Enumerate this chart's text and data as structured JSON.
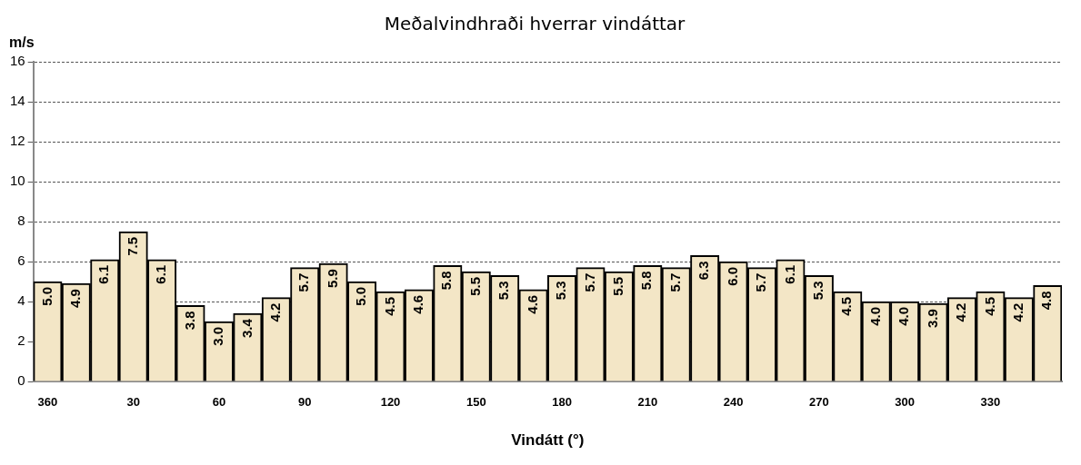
{
  "chart_data": {
    "type": "bar",
    "title": "Meðalvindhraði hverrar vindáttar",
    "xlabel": "Vindátt (°)",
    "ylabel": "m/s",
    "categories": [
      "360",
      null,
      null,
      "30",
      null,
      null,
      "60",
      null,
      null,
      "90",
      null,
      null,
      "120",
      null,
      null,
      "150",
      null,
      null,
      "180",
      null,
      null,
      "210",
      null,
      null,
      "240",
      null,
      null,
      "270",
      null,
      null,
      "300",
      null,
      null,
      "330",
      null,
      null
    ],
    "values": [
      5.0,
      4.9,
      6.1,
      7.5,
      6.1,
      3.8,
      3.0,
      3.4,
      4.2,
      5.7,
      5.9,
      5.0,
      4.5,
      4.6,
      5.8,
      5.5,
      5.3,
      4.6,
      5.3,
      5.7,
      5.5,
      5.8,
      5.7,
      6.3,
      6.0,
      5.7,
      6.1,
      5.3,
      4.5,
      4.0,
      4.0,
      3.9,
      4.2,
      4.5,
      4.2,
      4.8
    ],
    "value_labels": [
      "5.0",
      "4.9",
      "6.1",
      "7.5",
      "6.1",
      "3.8",
      "3.0",
      "3.4",
      "4.2",
      "5.7",
      "5.9",
      "5.0",
      "4.5",
      "4.6",
      "5.8",
      "5.5",
      "5.3",
      "4.6",
      "5.3",
      "5.7",
      "5.5",
      "5.8",
      "5.7",
      "6.3",
      "6.0",
      "5.7",
      "6.1",
      "5.3",
      "4.5",
      "4.0",
      "4.0",
      "3.9",
      "4.2",
      "4.5",
      "4.2",
      "4.8"
    ],
    "color": "#f3e6c6",
    "ylim": [
      0,
      16
    ],
    "yticks": [
      0,
      2,
      4,
      6,
      8,
      10,
      12,
      14,
      16
    ],
    "grid": "y",
    "legend": false
  }
}
